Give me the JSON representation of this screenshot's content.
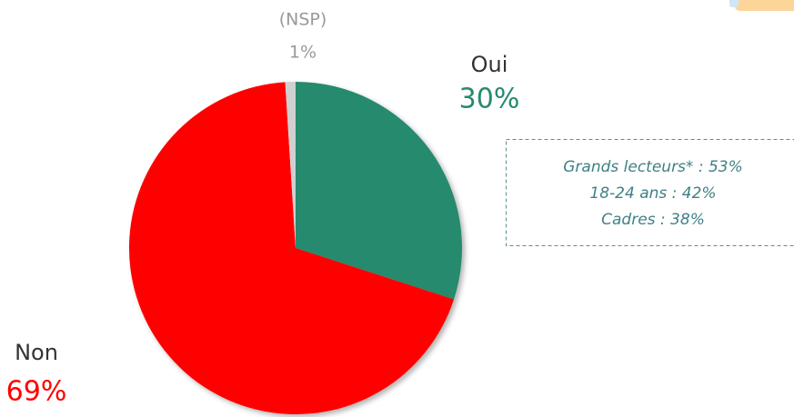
{
  "chart_data": {
    "type": "pie",
    "categories": [
      "Oui",
      "Non",
      "(NSP)"
    ],
    "values": [
      30,
      69,
      1
    ],
    "value_labels": [
      "30%",
      "69%",
      "1%"
    ],
    "colors": [
      "#268a6e",
      "#ff0000",
      "#d0d0d0"
    ],
    "annotations": [
      "Grands lecteurs* : 53%",
      "18-24 ans : 42%",
      "Cadres : 38%"
    ]
  }
}
